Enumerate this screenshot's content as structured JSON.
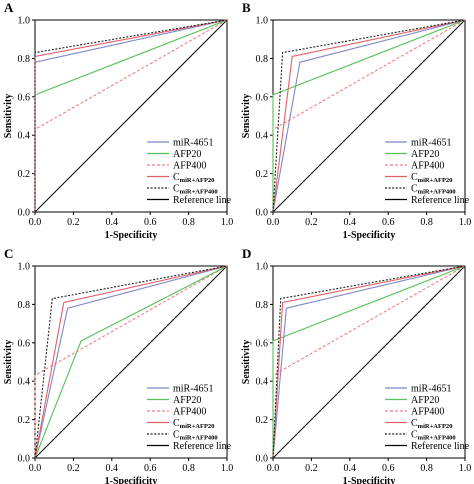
{
  "figure": {
    "legend_labels": [
      "miR-4651",
      "AFP20",
      "AFP400",
      "C",
      "C",
      "Reference line"
    ],
    "legend_subscripts": [
      "",
      "",
      "",
      "miR+AFP20",
      "miR+AFP400",
      ""
    ]
  },
  "styles": {
    "colors": {
      "miR-4651": "#7f86c8",
      "AFP20": "#56c158",
      "AFP400": "#f08080",
      "C_AFP20": "#e0606a",
      "C_AFP400": "#202020",
      "reference": "#000000"
    },
    "dashed": [
      "AFP400",
      "C_AFP400"
    ]
  },
  "chart_data": [
    {
      "panel": "A",
      "type": "line",
      "xlabel": "1-Specificity",
      "ylabel": "Sensitivity",
      "xlim": [
        0,
        1
      ],
      "ylim": [
        0,
        1
      ],
      "xticks": [
        "0.0",
        "0.2",
        "0.4",
        "0.6",
        "0.8",
        "1.0"
      ],
      "yticks": [
        "0.0",
        "0.2",
        "0.4",
        "0.6",
        "0.8",
        "1.0"
      ],
      "legend_position": "bottom-right",
      "series": [
        {
          "name": "miR-4651",
          "x": [
            0,
            0,
            1
          ],
          "y": [
            0,
            0.78,
            1
          ]
        },
        {
          "name": "AFP20",
          "x": [
            0,
            0,
            1
          ],
          "y": [
            0,
            0.61,
            1
          ]
        },
        {
          "name": "AFP400",
          "x": [
            0,
            0,
            1
          ],
          "y": [
            0,
            0.43,
            1
          ]
        },
        {
          "name": "C miR+AFP20",
          "x": [
            0,
            0,
            1
          ],
          "y": [
            0,
            0.81,
            1
          ]
        },
        {
          "name": "C miR+AFP400",
          "x": [
            0,
            0,
            1
          ],
          "y": [
            0,
            0.83,
            1
          ]
        },
        {
          "name": "Reference line",
          "x": [
            0,
            1
          ],
          "y": [
            0,
            1
          ]
        }
      ]
    },
    {
      "panel": "B",
      "type": "line",
      "xlabel": "1-Specificity",
      "ylabel": "Sensitivity",
      "xlim": [
        0,
        1
      ],
      "ylim": [
        0,
        1
      ],
      "xticks": [
        "0.0",
        "0.2",
        "0.4",
        "0.6",
        "0.8",
        "1.0"
      ],
      "yticks": [
        "0.0",
        "0.2",
        "0.4",
        "0.6",
        "0.8",
        "1.0"
      ],
      "legend_position": "bottom-right",
      "series": [
        {
          "name": "miR-4651",
          "x": [
            0,
            0.14,
            1
          ],
          "y": [
            0,
            0.78,
            1
          ]
        },
        {
          "name": "AFP20",
          "x": [
            0,
            0,
            1
          ],
          "y": [
            0,
            0.61,
            1
          ]
        },
        {
          "name": "AFP400",
          "x": [
            0,
            0,
            1
          ],
          "y": [
            0,
            0.43,
            1
          ]
        },
        {
          "name": "C miR+AFP20",
          "x": [
            0,
            0.1,
            1
          ],
          "y": [
            0,
            0.81,
            1
          ]
        },
        {
          "name": "C miR+AFP400",
          "x": [
            0,
            0.05,
            1
          ],
          "y": [
            0,
            0.83,
            1
          ]
        },
        {
          "name": "Reference line",
          "x": [
            0,
            1
          ],
          "y": [
            0,
            1
          ]
        }
      ]
    },
    {
      "panel": "C",
      "type": "line",
      "xlabel": "1-Specificity",
      "ylabel": "Sensitivity",
      "xlim": [
        0,
        1
      ],
      "ylim": [
        0,
        1
      ],
      "xticks": [
        "0.0",
        "0.2",
        "0.4",
        "0.6",
        "0.8",
        "1.0"
      ],
      "yticks": [
        "0.0",
        "0.2",
        "0.4",
        "0.6",
        "0.8",
        "1.0"
      ],
      "legend_position": "bottom-right",
      "series": [
        {
          "name": "miR-4651",
          "x": [
            0,
            0.17,
            1
          ],
          "y": [
            0,
            0.78,
            1
          ]
        },
        {
          "name": "AFP20",
          "x": [
            0,
            0.24,
            1
          ],
          "y": [
            0,
            0.61,
            1
          ]
        },
        {
          "name": "AFP400",
          "x": [
            0,
            0,
            1
          ],
          "y": [
            0,
            0.43,
            1
          ]
        },
        {
          "name": "C miR+AFP20",
          "x": [
            0,
            0.15,
            1
          ],
          "y": [
            0,
            0.81,
            1
          ]
        },
        {
          "name": "C miR+AFP400",
          "x": [
            0,
            0.09,
            1
          ],
          "y": [
            0,
            0.83,
            1
          ]
        },
        {
          "name": "Reference line",
          "x": [
            0,
            1
          ],
          "y": [
            0,
            1
          ]
        }
      ]
    },
    {
      "panel": "D",
      "type": "line",
      "xlabel": "1-Specificity",
      "ylabel": "Sensitivity",
      "xlim": [
        0,
        1
      ],
      "ylim": [
        0,
        1
      ],
      "xticks": [
        "0.0",
        "0.2",
        "0.4",
        "0.6",
        "0.8",
        "1.0"
      ],
      "yticks": [
        "0.0",
        "0.2",
        "0.4",
        "0.6",
        "0.8",
        "1.0"
      ],
      "legend_position": "bottom-right",
      "series": [
        {
          "name": "miR-4651",
          "x": [
            0,
            0.07,
            1
          ],
          "y": [
            0,
            0.78,
            1
          ]
        },
        {
          "name": "AFP20",
          "x": [
            0,
            0,
            1
          ],
          "y": [
            0,
            0.61,
            1
          ]
        },
        {
          "name": "AFP400",
          "x": [
            0,
            0,
            1
          ],
          "y": [
            0,
            0.43,
            1
          ]
        },
        {
          "name": "C miR+AFP20",
          "x": [
            0,
            0.05,
            1
          ],
          "y": [
            0,
            0.81,
            1
          ]
        },
        {
          "name": "C miR+AFP400",
          "x": [
            0,
            0.04,
            1
          ],
          "y": [
            0,
            0.83,
            1
          ]
        },
        {
          "name": "Reference line",
          "x": [
            0,
            1
          ],
          "y": [
            0,
            1
          ]
        }
      ]
    }
  ]
}
